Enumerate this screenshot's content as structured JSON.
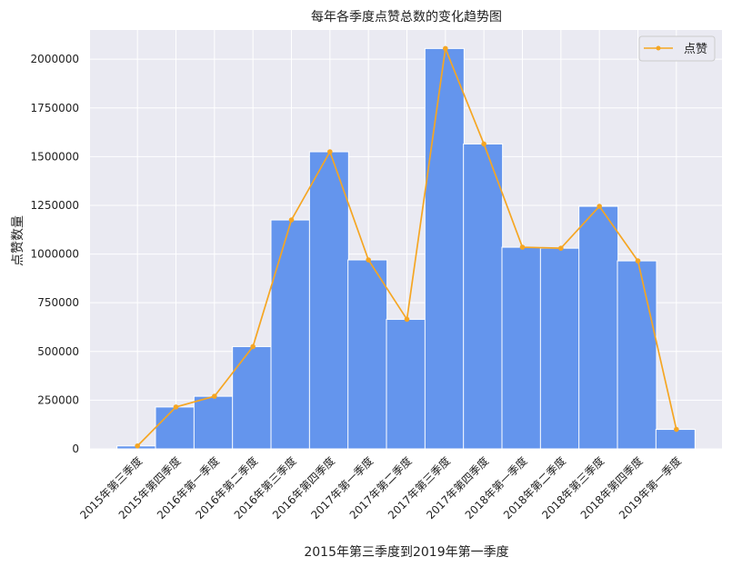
{
  "chart_data": {
    "type": "bar",
    "title": "每年各季度点赞总数的变化趋势图",
    "xlabel": "2015年第三季度到2019年第一季度",
    "ylabel": "点赞数量",
    "categories": [
      "2015年第三季度",
      "2015年第四季度",
      "2016年第一季度",
      "2016年第二季度",
      "2016年第三季度",
      "2016年第四季度",
      "2017年第一季度",
      "2017年第二季度",
      "2017年第三季度",
      "2017年第四季度",
      "2018年第一季度",
      "2018年第二季度",
      "2018年第三季度",
      "2018年第四季度",
      "2019年第一季度"
    ],
    "values": [
      15000,
      215000,
      270000,
      525000,
      1175000,
      1525000,
      970000,
      665000,
      2055000,
      1565000,
      1035000,
      1030000,
      1245000,
      965000,
      100000
    ],
    "line_series": {
      "name": "点赞",
      "values": [
        15000,
        215000,
        270000,
        525000,
        1175000,
        1525000,
        970000,
        665000,
        2055000,
        1565000,
        1035000,
        1030000,
        1245000,
        965000,
        100000
      ]
    },
    "yticks": [
      0,
      250000,
      500000,
      750000,
      1000000,
      1250000,
      1500000,
      1750000,
      2000000
    ],
    "ylim": [
      0,
      2150000
    ],
    "grid": true,
    "legend_position": "top-right",
    "colors": {
      "bar": "#6495ED",
      "line": "#F5A623",
      "background": "#EAEAF2",
      "grid": "#FFFFFF"
    }
  }
}
